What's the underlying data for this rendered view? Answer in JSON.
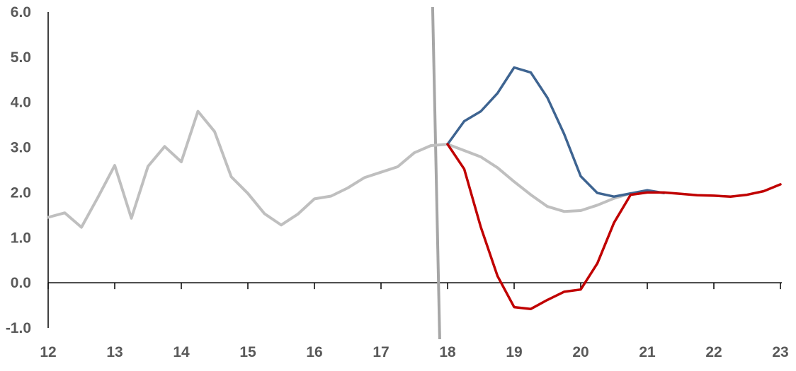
{
  "chart_data": {
    "type": "line",
    "title": "",
    "xlabel": "",
    "ylabel": "",
    "xlim": [
      12,
      23
    ],
    "ylim": [
      -1.0,
      6.0
    ],
    "x_ticks": [
      12,
      13,
      14,
      15,
      16,
      17,
      18,
      19,
      20,
      21,
      22,
      23
    ],
    "x_tick_labels": [
      "12",
      "13",
      "14",
      "15",
      "16",
      "17",
      "18",
      "19",
      "20",
      "21",
      "22",
      "23"
    ],
    "y_ticks": [
      -1.0,
      0.0,
      1.0,
      2.0,
      3.0,
      4.0,
      5.0,
      6.0
    ],
    "y_tick_labels": [
      "-1.0",
      "0.0",
      "1.0",
      "2.0",
      "3.0",
      "4.0",
      "5.0",
      "6.0"
    ],
    "grid": false,
    "legend": "none",
    "vertical_marker": {
      "x": 17.85,
      "color": "#A6A6A6"
    },
    "series": [
      {
        "color": "#BFBFBF",
        "x": [
          12,
          12.25,
          12.5,
          12.75,
          13,
          13.25,
          13.5,
          13.75,
          14,
          14.25,
          14.5,
          14.75,
          15,
          15.25,
          15.5,
          15.75,
          16,
          16.25,
          16.5,
          16.75,
          17,
          17.25,
          17.5,
          17.75,
          18,
          18.25,
          18.5,
          18.75,
          19,
          19.25,
          19.5,
          19.75,
          20,
          20.25,
          20.5,
          20.75
        ],
        "y": [
          1.45,
          1.55,
          1.23,
          1.9,
          2.6,
          1.43,
          2.58,
          3.02,
          2.68,
          3.8,
          3.35,
          2.35,
          1.98,
          1.53,
          1.28,
          1.52,
          1.86,
          1.92,
          2.1,
          2.33,
          2.45,
          2.57,
          2.88,
          3.04,
          3.07,
          2.93,
          2.79,
          2.55,
          2.24,
          1.95,
          1.69,
          1.58,
          1.6,
          1.72,
          1.87,
          1.98
        ]
      },
      {
        "color": "#3E6491",
        "x": [
          18,
          18.25,
          18.5,
          18.75,
          19,
          19.25,
          19.5,
          19.75,
          20,
          20.25,
          20.5,
          20.75,
          21,
          21.25
        ],
        "y": [
          3.07,
          3.58,
          3.8,
          4.2,
          4.77,
          4.66,
          4.1,
          3.3,
          2.36,
          1.99,
          1.91,
          1.98,
          2.05,
          1.99
        ]
      },
      {
        "color": "#C00000",
        "x": [
          18,
          18.25,
          18.5,
          18.75,
          19,
          19.25,
          19.5,
          19.75,
          20,
          20.25,
          20.5,
          20.75,
          21,
          21.25,
          21.5,
          21.75,
          22,
          22.25,
          22.5,
          22.75,
          23
        ],
        "y": [
          3.07,
          2.52,
          1.23,
          0.15,
          -0.54,
          -0.58,
          -0.38,
          -0.2,
          -0.15,
          0.43,
          1.33,
          1.95,
          2.0,
          2.0,
          1.97,
          1.94,
          1.93,
          1.91,
          1.95,
          2.03,
          2.18
        ]
      }
    ]
  }
}
